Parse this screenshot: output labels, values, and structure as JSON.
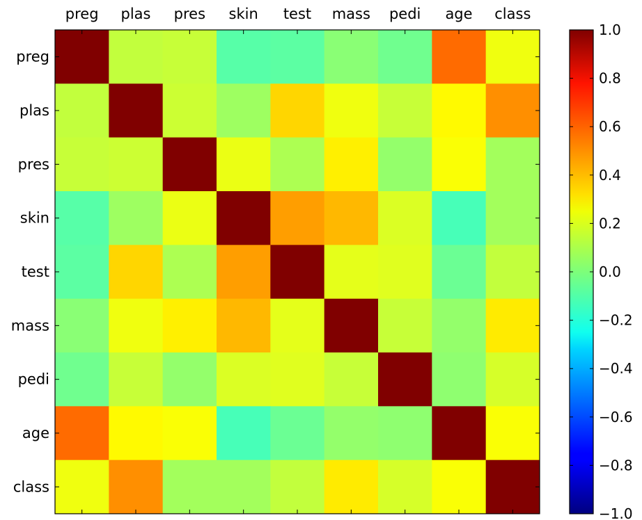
{
  "chart_data": {
    "type": "heatmap",
    "title": "",
    "xlabel": "",
    "ylabel": "",
    "x_categories": [
      "preg",
      "plas",
      "pres",
      "skin",
      "test",
      "mass",
      "pedi",
      "age",
      "class"
    ],
    "y_categories": [
      "preg",
      "plas",
      "pres",
      "skin",
      "test",
      "mass",
      "pedi",
      "age",
      "class"
    ],
    "values": [
      [
        1.0,
        0.13,
        0.14,
        -0.08,
        -0.07,
        0.02,
        -0.03,
        0.54,
        0.22
      ],
      [
        0.13,
        1.0,
        0.15,
        0.06,
        0.33,
        0.22,
        0.14,
        0.26,
        0.47
      ],
      [
        0.14,
        0.15,
        1.0,
        0.21,
        0.09,
        0.28,
        0.04,
        0.24,
        0.07
      ],
      [
        -0.08,
        0.06,
        0.21,
        1.0,
        0.44,
        0.39,
        0.18,
        -0.11,
        0.07
      ],
      [
        -0.07,
        0.33,
        0.09,
        0.44,
        1.0,
        0.2,
        0.19,
        -0.04,
        0.13
      ],
      [
        0.02,
        0.22,
        0.28,
        0.39,
        0.2,
        1.0,
        0.14,
        0.04,
        0.29
      ],
      [
        -0.03,
        0.14,
        0.04,
        0.18,
        0.19,
        0.14,
        1.0,
        0.03,
        0.17
      ],
      [
        0.54,
        0.26,
        0.24,
        -0.11,
        -0.04,
        0.04,
        0.03,
        1.0,
        0.24
      ],
      [
        0.22,
        0.47,
        0.07,
        0.07,
        0.13,
        0.29,
        0.17,
        0.24,
        1.0
      ]
    ],
    "colormap": "jet",
    "vmin": -1.0,
    "vmax": 1.0,
    "colorbar_ticks": [
      "1.0",
      "0.8",
      "0.6",
      "0.4",
      "0.2",
      "0.0",
      "−0.2",
      "−0.4",
      "−0.6",
      "−0.8",
      "−1.0"
    ],
    "colorbar_tick_values": [
      1.0,
      0.8,
      0.6,
      0.4,
      0.2,
      0.0,
      -0.2,
      -0.4,
      -0.6,
      -0.8,
      -1.0
    ],
    "x_tick_position": "top",
    "grid": false,
    "legend": "colorbar-right"
  }
}
